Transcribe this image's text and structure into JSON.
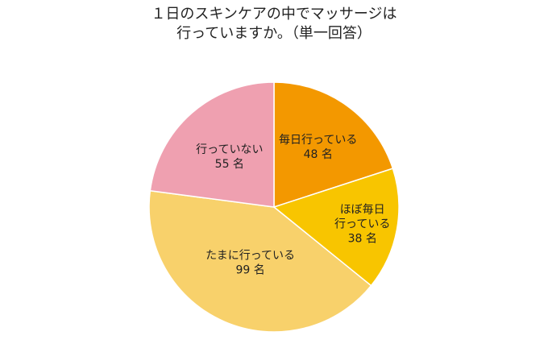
{
  "chart_data": {
    "type": "pie",
    "title_lines": [
      "１日のスキンケアの中でマッサージは",
      "行っていますか。（単一回答）"
    ],
    "slices": [
      {
        "label_lines": [
          "毎日行っている",
          "48 名"
        ],
        "value": 48,
        "color": "#F39800"
      },
      {
        "label_lines": [
          "ほぼ毎日",
          "行っている",
          "38 名"
        ],
        "value": 38,
        "color": "#F8C500"
      },
      {
        "label_lines": [
          "たまに行っている",
          "99 名"
        ],
        "value": 99,
        "color": "#F8D16B"
      },
      {
        "label_lines": [
          "行っていない",
          "55 名"
        ],
        "value": 55,
        "color": "#EFA0B0"
      }
    ],
    "start_angle": "12 o'clock",
    "direction": "clockwise",
    "legend": "none"
  }
}
